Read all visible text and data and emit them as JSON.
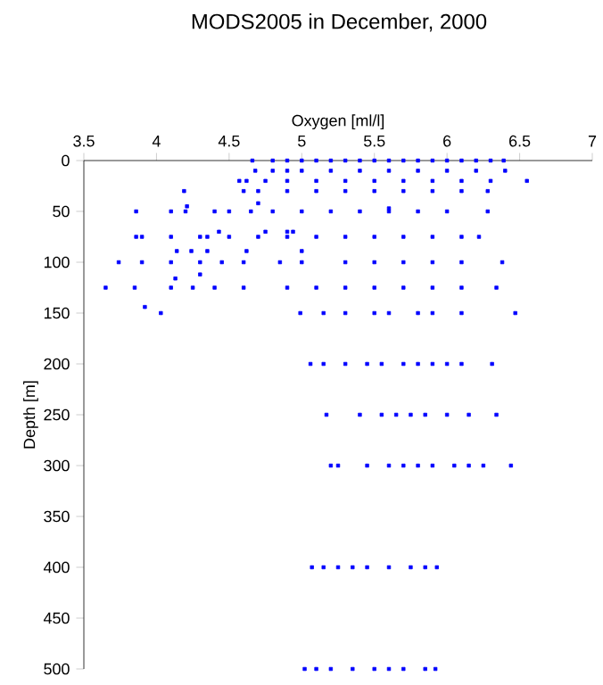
{
  "chart_data": {
    "type": "scatter",
    "title": "MODS2005 in December, 2000",
    "xlabel": "Oxygen [ml/l]",
    "ylabel": "Depth [m]",
    "xlim": [
      3.5,
      7
    ],
    "xticks": [
      3.5,
      4,
      4.5,
      5,
      5.5,
      6,
      6.5,
      7
    ],
    "ylim": [
      500,
      0
    ],
    "yticks": [
      0,
      50,
      100,
      150,
      200,
      250,
      300,
      350,
      400,
      450,
      500
    ],
    "color": "#0000ff",
    "marker": "square",
    "x": [
      4.66,
      4.8,
      4.9,
      5.0,
      5.1,
      5.2,
      5.3,
      5.4,
      5.5,
      5.6,
      5.7,
      5.8,
      5.9,
      6.0,
      6.1,
      6.2,
      6.3,
      6.39,
      4.68,
      4.8,
      4.9,
      5.0,
      5.2,
      5.4,
      5.6,
      5.8,
      6.0,
      6.2,
      6.4,
      4.57,
      4.62,
      4.75,
      4.9,
      5.1,
      5.3,
      5.5,
      5.7,
      5.9,
      6.1,
      6.3,
      6.55,
      4.19,
      4.6,
      4.7,
      4.9,
      5.1,
      5.3,
      5.5,
      5.7,
      5.9,
      6.1,
      6.28,
      4.21,
      4.7,
      5.6,
      3.86,
      4.1,
      4.2,
      4.4,
      4.5,
      4.65,
      4.8,
      5.0,
      5.2,
      5.4,
      5.6,
      5.8,
      6.0,
      6.28,
      4.43,
      4.75,
      4.9,
      4.94,
      3.86,
      3.9,
      4.1,
      4.3,
      4.35,
      4.5,
      4.7,
      4.9,
      5.1,
      5.3,
      5.5,
      5.7,
      5.9,
      6.1,
      6.22,
      4.14,
      4.24,
      4.35,
      4.62,
      5.0,
      3.74,
      3.9,
      4.1,
      4.3,
      4.45,
      4.6,
      4.85,
      5.0,
      5.3,
      5.5,
      5.7,
      5.9,
      6.1,
      6.38,
      4.13,
      4.3,
      3.65,
      3.85,
      4.1,
      4.25,
      4.4,
      4.6,
      4.9,
      5.1,
      5.3,
      5.5,
      5.7,
      5.9,
      6.1,
      6.34,
      3.92,
      4.03,
      4.99,
      5.15,
      5.3,
      5.5,
      5.6,
      5.8,
      5.9,
      6.1,
      6.47,
      5.06,
      5.15,
      5.3,
      5.45,
      5.55,
      5.7,
      5.8,
      5.9,
      6.0,
      6.1,
      6.31,
      5.17,
      5.4,
      5.55,
      5.65,
      5.75,
      5.85,
      6.0,
      6.15,
      6.34,
      5.2,
      5.25,
      5.45,
      5.6,
      5.7,
      5.8,
      5.9,
      6.05,
      6.15,
      6.25,
      6.44,
      5.07,
      5.15,
      5.25,
      5.35,
      5.45,
      5.6,
      5.75,
      5.85,
      5.93,
      5.02,
      5.1,
      5.2,
      5.35,
      5.5,
      5.6,
      5.7,
      5.85,
      5.92
    ],
    "values": [
      0,
      0,
      0,
      0,
      0,
      0,
      0,
      0,
      0,
      0,
      0,
      0,
      0,
      0,
      0,
      0,
      0,
      0,
      10,
      10,
      10,
      10,
      10,
      10,
      10,
      10,
      10,
      10,
      10,
      20,
      20,
      20,
      20,
      20,
      20,
      20,
      20,
      20,
      20,
      20,
      20,
      30,
      30,
      30,
      30,
      30,
      30,
      30,
      30,
      30,
      30,
      30,
      45,
      42,
      47,
      50,
      50,
      50,
      50,
      50,
      50,
      50,
      50,
      50,
      50,
      50,
      50,
      50,
      50,
      70,
      70,
      70,
      70,
      75,
      75,
      75,
      75,
      75,
      75,
      75,
      75,
      75,
      75,
      75,
      75,
      75,
      75,
      75,
      89,
      89,
      89,
      89,
      89,
      100,
      100,
      100,
      100,
      100,
      100,
      100,
      100,
      100,
      100,
      100,
      100,
      100,
      100,
      116,
      112,
      125,
      125,
      125,
      125,
      125,
      125,
      125,
      125,
      125,
      125,
      125,
      125,
      125,
      125,
      144,
      150,
      150,
      150,
      150,
      150,
      150,
      150,
      150,
      150,
      150,
      200,
      200,
      200,
      200,
      200,
      200,
      200,
      200,
      200,
      200,
      200,
      250,
      250,
      250,
      250,
      250,
      250,
      250,
      250,
      250,
      300,
      300,
      300,
      300,
      300,
      300,
      300,
      300,
      300,
      300,
      300,
      400,
      400,
      400,
      400,
      400,
      400,
      400,
      400,
      400,
      500,
      500,
      500,
      500,
      500,
      500,
      500,
      500,
      500
    ]
  }
}
